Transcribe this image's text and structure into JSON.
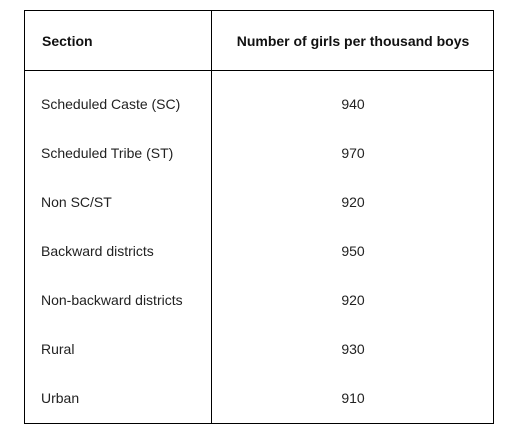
{
  "table": {
    "headers": {
      "section": "Section",
      "value": "Number of girls per thousand boys"
    },
    "rows": [
      {
        "section": "Scheduled Caste (SC)",
        "value": "940"
      },
      {
        "section": "Scheduled Tribe (ST)",
        "value": "970"
      },
      {
        "section": "Non SC/ST",
        "value": "920"
      },
      {
        "section": "Backward districts",
        "value": "950"
      },
      {
        "section": "Non-backward districts",
        "value": "920"
      },
      {
        "section": "Rural",
        "value": "930"
      },
      {
        "section": "Urban",
        "value": "910"
      }
    ]
  }
}
